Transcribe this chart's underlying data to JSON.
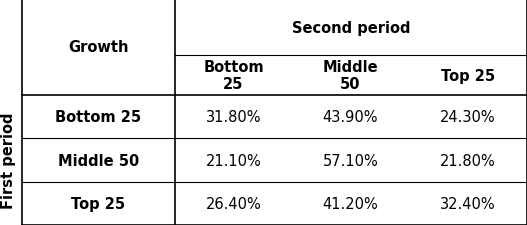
{
  "second_period_label": "Second period",
  "col_headers": [
    "Growth",
    "Bottom\n25",
    "Middle\n50",
    "Top 25"
  ],
  "row_label_vertical": "First period",
  "row_headers": [
    "Bottom 25",
    "Middle 50",
    "Top 25"
  ],
  "cell_data": [
    [
      "31.80%",
      "43.90%",
      "24.30%"
    ],
    [
      "21.10%",
      "57.10%",
      "21.80%"
    ],
    [
      "26.40%",
      "41.20%",
      "32.40%"
    ]
  ],
  "bg_color": "#ffffff",
  "text_color": "#000000",
  "header_fontsize": 10.5,
  "cell_fontsize": 10.5,
  "line_color": "#000000"
}
